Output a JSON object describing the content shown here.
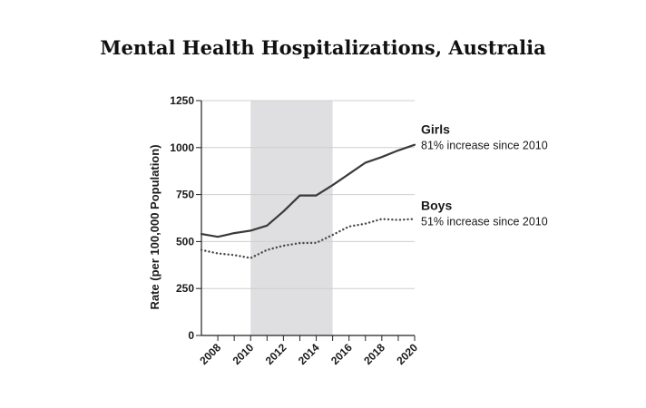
{
  "chart_data": {
    "type": "line",
    "title": "Mental Health Hospitalizations, Australia",
    "xlabel": "",
    "ylabel": "Rate (per 100,000 Population)",
    "xlim": [
      2007,
      2020
    ],
    "ylim": [
      0,
      1250
    ],
    "y_ticks": [
      0,
      250,
      500,
      750,
      1000,
      1250
    ],
    "x_ticks": [
      2008,
      2010,
      2012,
      2014,
      2016,
      2018,
      2020
    ],
    "grid": true,
    "shaded_region": {
      "x_start": 2010,
      "x_end": 2015,
      "color": "#dfdfe1"
    },
    "series": [
      {
        "name": "Girls",
        "annotation": "81% increase since 2010",
        "style": "solid",
        "color": "#3a3a3a",
        "x": [
          2007,
          2008,
          2009,
          2010,
          2011,
          2012,
          2013,
          2014,
          2015,
          2016,
          2017,
          2018,
          2019,
          2020
        ],
        "values": [
          540,
          525,
          545,
          558,
          585,
          660,
          745,
          745,
          800,
          860,
          920,
          950,
          985,
          1015
        ]
      },
      {
        "name": "Boys",
        "annotation": "51% increase since 2010",
        "style": "dotted",
        "color": "#4a4a4a",
        "x": [
          2007,
          2008,
          2009,
          2010,
          2011,
          2012,
          2013,
          2014,
          2015,
          2016,
          2017,
          2018,
          2019,
          2020
        ],
        "values": [
          455,
          437,
          428,
          412,
          455,
          478,
          492,
          493,
          535,
          580,
          595,
          620,
          615,
          620
        ]
      }
    ]
  }
}
